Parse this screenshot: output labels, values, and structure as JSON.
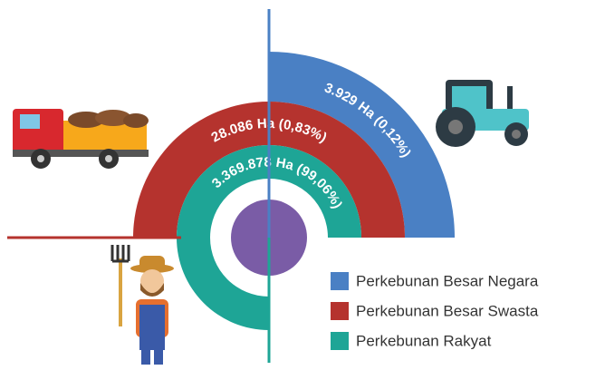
{
  "chart_data": {
    "type": "radial",
    "categories": [
      "Perkebunan Besar Negara",
      "Perkebunan Besar Swasta",
      "Perkebunan Rakyat"
    ],
    "values": [
      3929,
      28086,
      3369878
    ],
    "value_labels": [
      "3.929 Ha (0,12%)",
      "28.086 Ha (0,83%)",
      "3.369.878 Ha (99,06%)"
    ],
    "colors": [
      "#4a80c4",
      "#b5332e",
      "#1ea596"
    ]
  }
}
